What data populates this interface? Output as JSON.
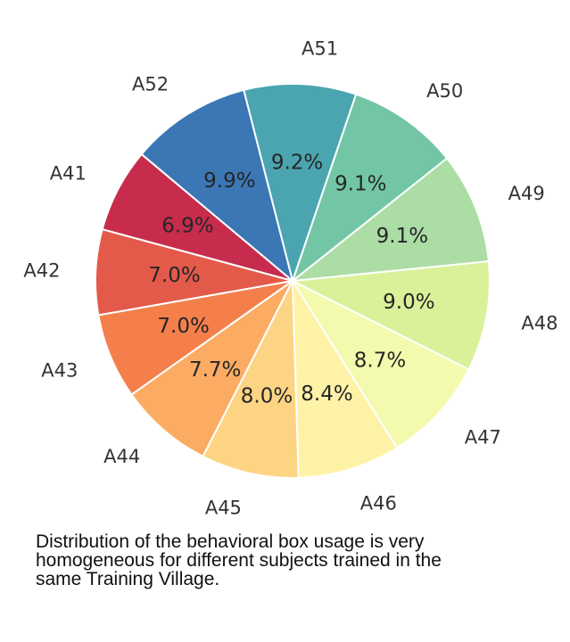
{
  "chart_data": {
    "type": "pie",
    "categories": [
      "A41",
      "A42",
      "A43",
      "A44",
      "A45",
      "A46",
      "A47",
      "A48",
      "A49",
      "A50",
      "A51",
      "A52"
    ],
    "values": [
      6.9,
      7.0,
      7.0,
      7.7,
      8.0,
      8.4,
      8.7,
      9.0,
      9.1,
      9.1,
      9.2,
      9.9
    ],
    "value_labels": [
      "6.9%",
      "7.0%",
      "7.0%",
      "7.7%",
      "8.0%",
      "8.4%",
      "8.7%",
      "9.0%",
      "9.1%",
      "9.1%",
      "9.2%",
      "9.9%"
    ],
    "colors": [
      "#c72c4c",
      "#e45a4a",
      "#f47f4b",
      "#fbac62",
      "#fdd484",
      "#fef2a6",
      "#f4faad",
      "#dbf199",
      "#abdda5",
      "#73c6a5",
      "#4aa5b0",
      "#3b77b5"
    ],
    "start_angle_deg": 140,
    "direction": "counterclockwise",
    "edge_color": "#ffffff",
    "legend": "none"
  },
  "caption": {
    "lines": [
      "Distribution of the behavioral box usage is very",
      "homogeneous for different  subjects trained in the",
      "same Training Village."
    ]
  }
}
